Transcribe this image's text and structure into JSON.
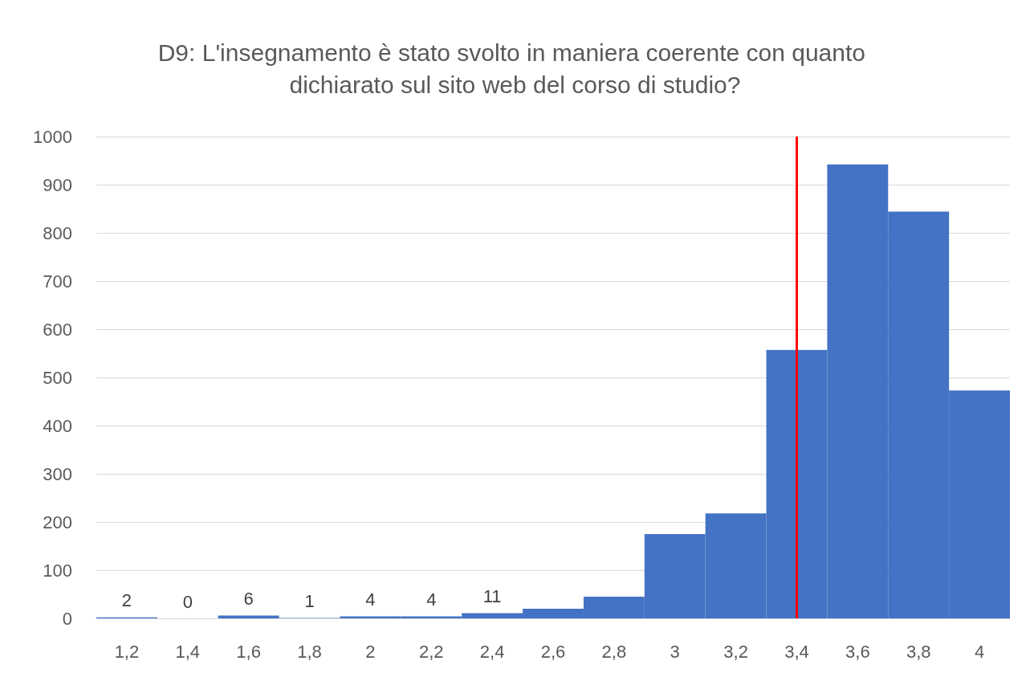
{
  "chart_data": {
    "type": "bar",
    "title": "D9: L'insegnamento è stato svolto in maniera coerente con quanto dichiarato sul sito web del corso di studio?",
    "categories": [
      "1,2",
      "1,4",
      "1,6",
      "1,8",
      "2",
      "2,2",
      "2,4",
      "2,6",
      "2,8",
      "3",
      "3,2",
      "3,4",
      "3,6",
      "3,8",
      "4"
    ],
    "values": [
      2,
      0,
      6,
      1,
      4,
      4,
      11,
      20,
      45,
      175,
      218,
      557,
      942,
      844,
      473
    ],
    "value_labels": [
      "2",
      "0",
      "6",
      "1",
      "4",
      "4",
      "11",
      null,
      null,
      null,
      null,
      null,
      null,
      null,
      null
    ],
    "color": "#4472c4",
    "ylim": [
      0,
      1000
    ],
    "yticks": [
      0,
      100,
      200,
      300,
      400,
      500,
      600,
      700,
      800,
      900,
      1000
    ],
    "grid": "y",
    "ref_lines": [
      {
        "axis": "x",
        "value": "3,4",
        "color": "#ff0000"
      }
    ]
  }
}
